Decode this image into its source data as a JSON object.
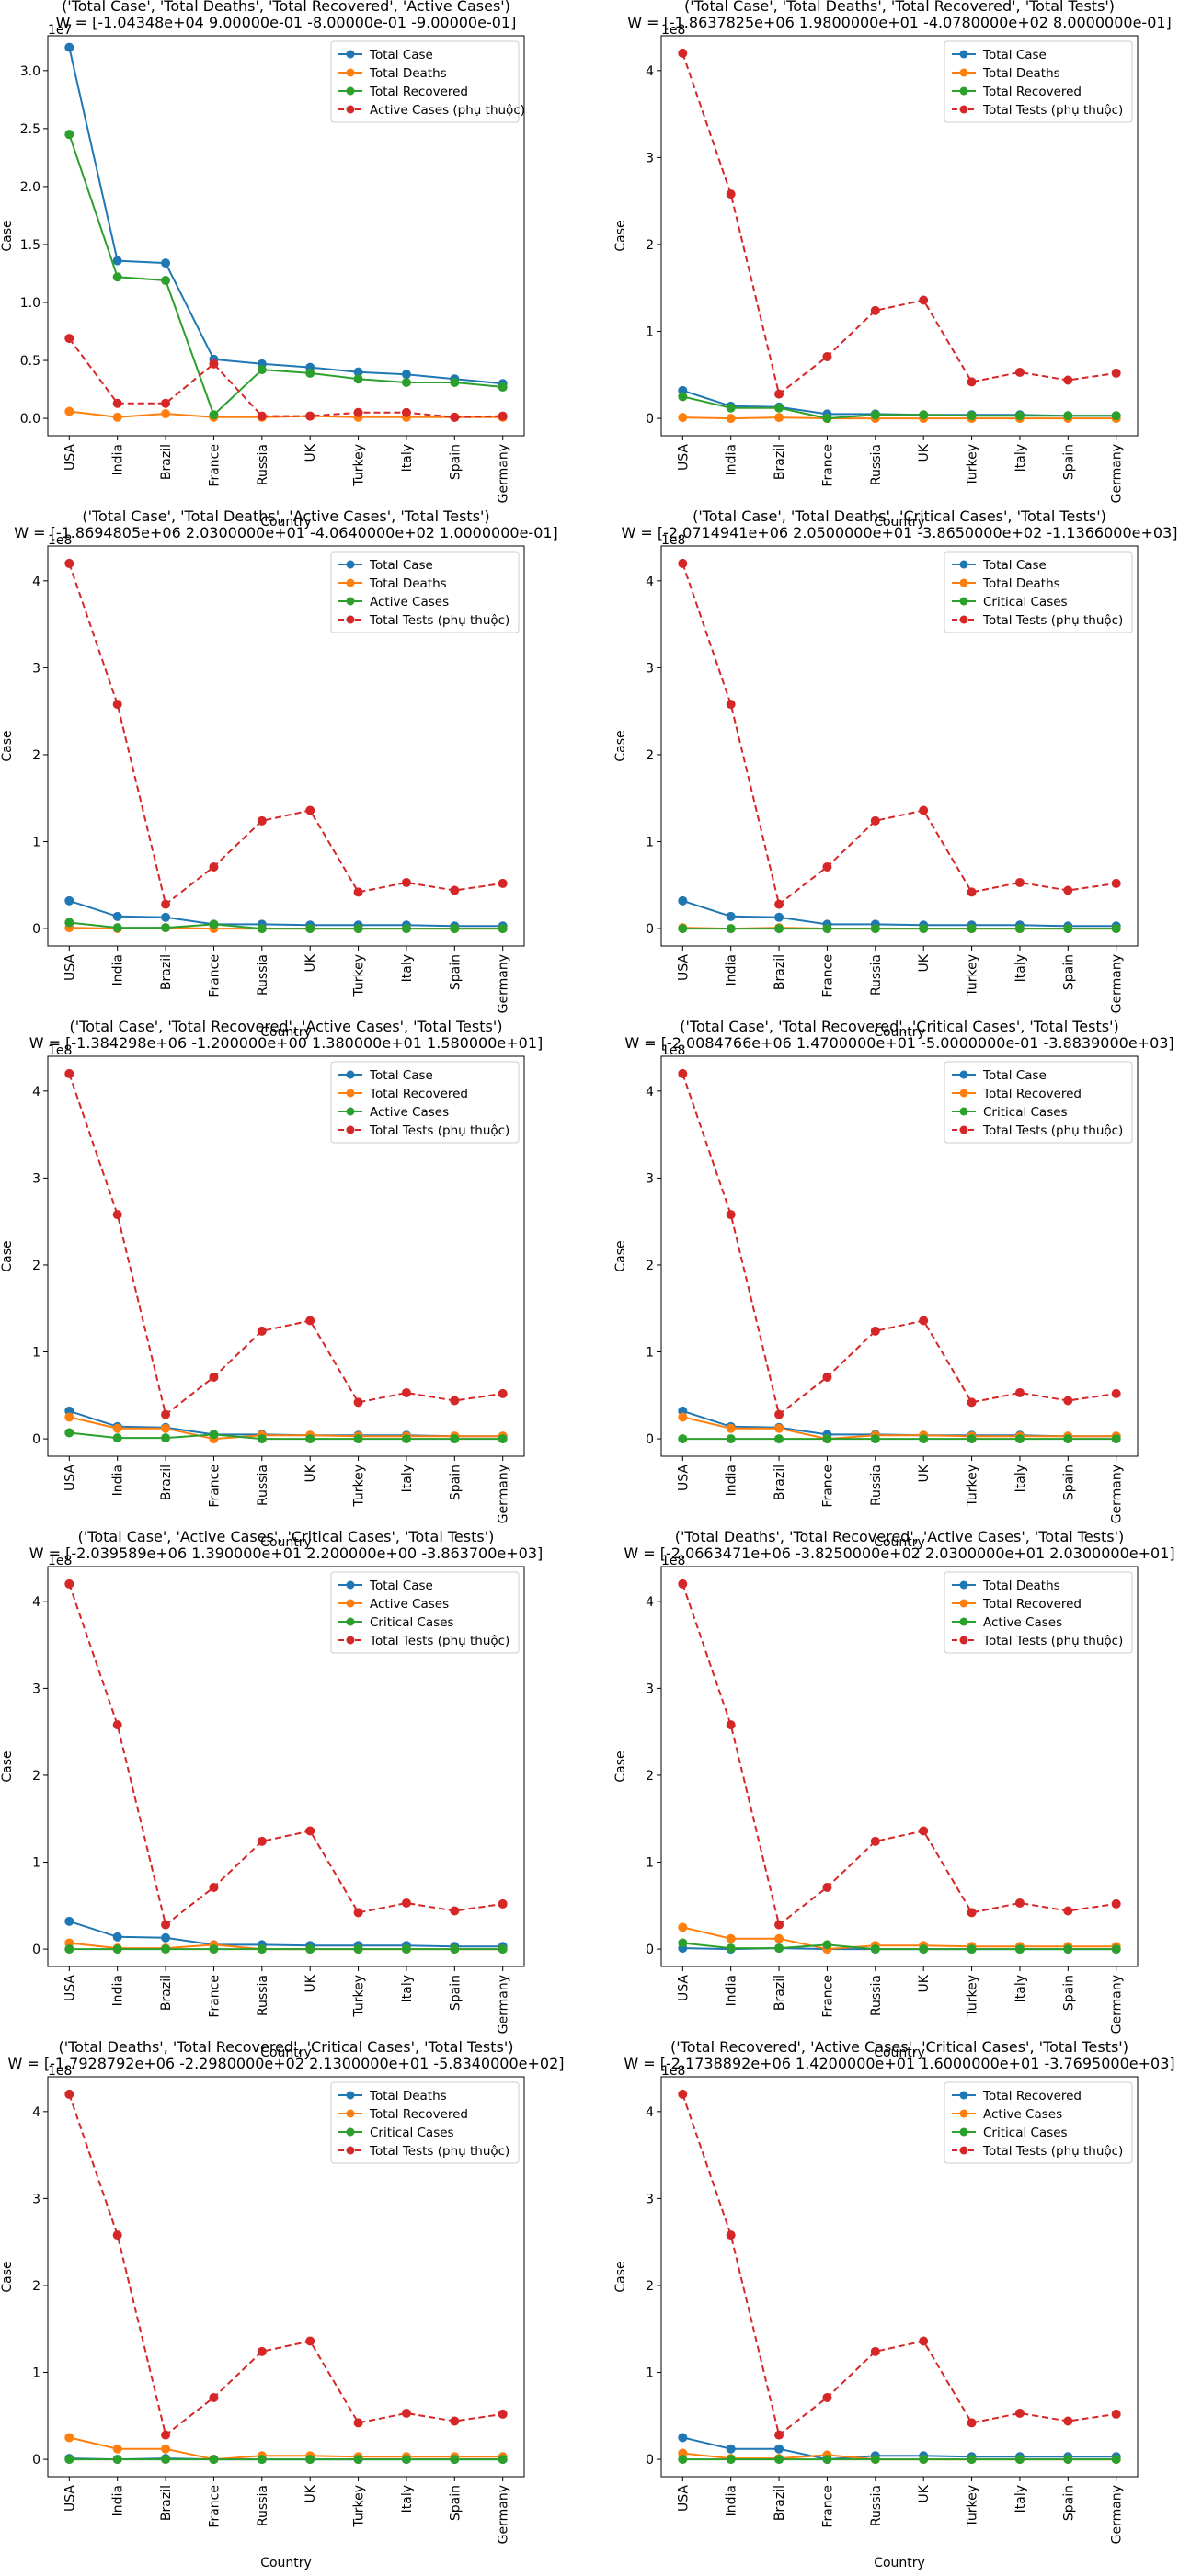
{
  "figure": {
    "layout": {
      "rows": 5,
      "cols": 2
    }
  },
  "common": {
    "xlabel": "Country",
    "ylabel": "Case",
    "offset_label": "1e8",
    "categories": [
      "USA",
      "India",
      "Brazil",
      "France",
      "Russia",
      "UK",
      "Turkey",
      "Italy",
      "Spain",
      "Germany"
    ],
    "colors": {
      "blue": "#1f77b4",
      "orange": "#ff7f0e",
      "green": "#2ca02c",
      "red": "#d62728"
    }
  },
  "chart_data": [
    {
      "type": "line",
      "title_line1": "('Total Case', 'Total Deaths', 'Total Recovered', 'Active Cases')",
      "title_line2": "W = [-1.04348e+04  9.00000e-01 -8.00000e-01 -9.00000e-01]",
      "xlabel": "Country",
      "ylabel": "Case",
      "offset_label": "1e7",
      "ylim": [
        -0.15,
        3.3
      ],
      "yticks": [
        "0.0",
        "0.5",
        "1.0",
        "1.5",
        "2.0",
        "2.5",
        "3.0"
      ],
      "legend_position": "top-right",
      "series": [
        {
          "name": "Total Case",
          "color": "#1f77b4",
          "dashed": false,
          "values": [
            3.2,
            1.36,
            1.34,
            0.51,
            0.47,
            0.44,
            0.4,
            0.38,
            0.34,
            0.3
          ]
        },
        {
          "name": "Total Deaths",
          "color": "#ff7f0e",
          "dashed": false,
          "values": [
            0.06,
            0.01,
            0.04,
            0.01,
            0.01,
            0.02,
            0.01,
            0.01,
            0.01,
            0.01
          ]
        },
        {
          "name": "Total Recovered",
          "color": "#2ca02c",
          "dashed": false,
          "values": [
            2.45,
            1.22,
            1.19,
            0.03,
            0.42,
            0.39,
            0.34,
            0.31,
            0.31,
            0.27
          ]
        },
        {
          "name": "Active Cases (phụ thuộc)",
          "color": "#d62728",
          "dashed": true,
          "values": [
            0.69,
            0.13,
            0.13,
            0.47,
            0.02,
            0.02,
            0.05,
            0.05,
            0.01,
            0.02
          ]
        }
      ]
    },
    {
      "type": "line",
      "title_line1": "('Total Case', 'Total Deaths', 'Total Recovered', 'Total Tests')",
      "title_line2": "W = [-1.8637825e+06  1.9800000e+01 -4.0780000e+02  8.0000000e-01]",
      "xlabel": "Country",
      "ylabel": "Case",
      "offset_label": "1e8",
      "ylim": [
        -0.2,
        4.4
      ],
      "yticks": [
        "0",
        "1",
        "2",
        "3",
        "4"
      ],
      "legend_position": "top-right",
      "series": [
        {
          "name": "Total Case",
          "color": "#1f77b4",
          "dashed": false,
          "values": [
            0.32,
            0.14,
            0.13,
            0.05,
            0.05,
            0.04,
            0.04,
            0.04,
            0.03,
            0.03
          ]
        },
        {
          "name": "Total Deaths",
          "color": "#ff7f0e",
          "dashed": false,
          "values": [
            0.01,
            0.0,
            0.01,
            0.0,
            0.0,
            0.0,
            0.0,
            0.0,
            0.0,
            0.0
          ]
        },
        {
          "name": "Total Recovered",
          "color": "#2ca02c",
          "dashed": false,
          "values": [
            0.25,
            0.12,
            0.12,
            0.0,
            0.04,
            0.04,
            0.03,
            0.03,
            0.03,
            0.03
          ]
        },
        {
          "name": "Total Tests (phụ thuộc)",
          "color": "#d62728",
          "dashed": true,
          "values": [
            4.2,
            2.58,
            0.28,
            0.71,
            1.24,
            1.36,
            0.42,
            0.53,
            0.44,
            0.52
          ]
        }
      ]
    },
    {
      "type": "line",
      "title_line1": "('Total Case', 'Total Deaths', 'Active Cases', 'Total Tests')",
      "title_line2": "W = [-1.8694805e+06  2.0300000e+01 -4.0640000e+02  1.0000000e-01]",
      "xlabel": "Country",
      "ylabel": "Case",
      "offset_label": "1e8",
      "ylim": [
        -0.2,
        4.4
      ],
      "yticks": [
        "0",
        "1",
        "2",
        "3",
        "4"
      ],
      "legend_position": "top-right",
      "series": [
        {
          "name": "Total Case",
          "color": "#1f77b4",
          "dashed": false,
          "values": [
            0.32,
            0.14,
            0.13,
            0.05,
            0.05,
            0.04,
            0.04,
            0.04,
            0.03,
            0.03
          ]
        },
        {
          "name": "Total Deaths",
          "color": "#ff7f0e",
          "dashed": false,
          "values": [
            0.01,
            0.0,
            0.01,
            0.0,
            0.0,
            0.0,
            0.0,
            0.0,
            0.0,
            0.0
          ]
        },
        {
          "name": "Active Cases",
          "color": "#2ca02c",
          "dashed": false,
          "values": [
            0.07,
            0.01,
            0.01,
            0.05,
            0.0,
            0.0,
            0.0,
            0.0,
            0.0,
            0.0
          ]
        },
        {
          "name": "Total Tests (phụ thuộc)",
          "color": "#d62728",
          "dashed": true,
          "values": [
            4.2,
            2.58,
            0.28,
            0.71,
            1.24,
            1.36,
            0.42,
            0.53,
            0.44,
            0.52
          ]
        }
      ]
    },
    {
      "type": "line",
      "title_line1": "('Total Case', 'Total Deaths', 'Critical Cases', 'Total Tests')",
      "title_line2": "W = [-2.0714941e+06  2.0500000e+01 -3.8650000e+02 -1.1366000e+03]",
      "xlabel": "Country",
      "ylabel": "Case",
      "offset_label": "1e8",
      "ylim": [
        -0.2,
        4.4
      ],
      "yticks": [
        "0",
        "1",
        "2",
        "3",
        "4"
      ],
      "legend_position": "top-right",
      "series": [
        {
          "name": "Total Case",
          "color": "#1f77b4",
          "dashed": false,
          "values": [
            0.32,
            0.14,
            0.13,
            0.05,
            0.05,
            0.04,
            0.04,
            0.04,
            0.03,
            0.03
          ]
        },
        {
          "name": "Total Deaths",
          "color": "#ff7f0e",
          "dashed": false,
          "values": [
            0.01,
            0.0,
            0.01,
            0.0,
            0.0,
            0.0,
            0.0,
            0.0,
            0.0,
            0.0
          ]
        },
        {
          "name": "Critical Cases",
          "color": "#2ca02c",
          "dashed": false,
          "values": [
            0.0,
            0.0,
            0.0,
            0.0,
            0.0,
            0.0,
            0.0,
            0.0,
            0.0,
            0.0
          ]
        },
        {
          "name": "Total Tests (phụ thuộc)",
          "color": "#d62728",
          "dashed": true,
          "values": [
            4.2,
            2.58,
            0.28,
            0.71,
            1.24,
            1.36,
            0.42,
            0.53,
            0.44,
            0.52
          ]
        }
      ]
    },
    {
      "type": "line",
      "title_line1": "('Total Case', 'Total Recovered', 'Active Cases', 'Total Tests')",
      "title_line2": "W = [-1.384298e+06 -1.200000e+00  1.380000e+01  1.580000e+01]",
      "xlabel": "Country",
      "ylabel": "Case",
      "offset_label": "1e8",
      "ylim": [
        -0.2,
        4.4
      ],
      "yticks": [
        "0",
        "1",
        "2",
        "3",
        "4"
      ],
      "legend_position": "top-right",
      "series": [
        {
          "name": "Total Case",
          "color": "#1f77b4",
          "dashed": false,
          "values": [
            0.32,
            0.14,
            0.13,
            0.05,
            0.05,
            0.04,
            0.04,
            0.04,
            0.03,
            0.03
          ]
        },
        {
          "name": "Total Recovered",
          "color": "#ff7f0e",
          "dashed": false,
          "values": [
            0.25,
            0.12,
            0.12,
            0.0,
            0.04,
            0.04,
            0.03,
            0.03,
            0.03,
            0.03
          ]
        },
        {
          "name": "Active Cases",
          "color": "#2ca02c",
          "dashed": false,
          "values": [
            0.07,
            0.01,
            0.01,
            0.05,
            0.0,
            0.0,
            0.0,
            0.0,
            0.0,
            0.0
          ]
        },
        {
          "name": "Total Tests (phụ thuộc)",
          "color": "#d62728",
          "dashed": true,
          "values": [
            4.2,
            2.58,
            0.28,
            0.71,
            1.24,
            1.36,
            0.42,
            0.53,
            0.44,
            0.52
          ]
        }
      ]
    },
    {
      "type": "line",
      "title_line1": "('Total Case', 'Total Recovered', 'Critical Cases', 'Total Tests')",
      "title_line2": "W = [-2.0084766e+06  1.4700000e+01 -5.0000000e-01 -3.8839000e+03]",
      "xlabel": "Country",
      "ylabel": "Case",
      "offset_label": "1e8",
      "ylim": [
        -0.2,
        4.4
      ],
      "yticks": [
        "0",
        "1",
        "2",
        "3",
        "4"
      ],
      "legend_position": "top-right",
      "series": [
        {
          "name": "Total Case",
          "color": "#1f77b4",
          "dashed": false,
          "values": [
            0.32,
            0.14,
            0.13,
            0.05,
            0.05,
            0.04,
            0.04,
            0.04,
            0.03,
            0.03
          ]
        },
        {
          "name": "Total Recovered",
          "color": "#ff7f0e",
          "dashed": false,
          "values": [
            0.25,
            0.12,
            0.12,
            0.0,
            0.04,
            0.04,
            0.03,
            0.03,
            0.03,
            0.03
          ]
        },
        {
          "name": "Critical Cases",
          "color": "#2ca02c",
          "dashed": false,
          "values": [
            0.0,
            0.0,
            0.0,
            0.0,
            0.0,
            0.0,
            0.0,
            0.0,
            0.0,
            0.0
          ]
        },
        {
          "name": "Total Tests (phụ thuộc)",
          "color": "#d62728",
          "dashed": true,
          "values": [
            4.2,
            2.58,
            0.28,
            0.71,
            1.24,
            1.36,
            0.42,
            0.53,
            0.44,
            0.52
          ]
        }
      ]
    },
    {
      "type": "line",
      "title_line1": "('Total Case', 'Active Cases', 'Critical Cases', 'Total Tests')",
      "title_line2": "W = [-2.039589e+06  1.390000e+01  2.200000e+00 -3.863700e+03]",
      "xlabel": "Country",
      "ylabel": "Case",
      "offset_label": "1e8",
      "ylim": [
        -0.2,
        4.4
      ],
      "yticks": [
        "0",
        "1",
        "2",
        "3",
        "4"
      ],
      "legend_position": "top-right",
      "series": [
        {
          "name": "Total Case",
          "color": "#1f77b4",
          "dashed": false,
          "values": [
            0.32,
            0.14,
            0.13,
            0.05,
            0.05,
            0.04,
            0.04,
            0.04,
            0.03,
            0.03
          ]
        },
        {
          "name": "Active Cases",
          "color": "#ff7f0e",
          "dashed": false,
          "values": [
            0.07,
            0.01,
            0.01,
            0.05,
            0.0,
            0.0,
            0.0,
            0.0,
            0.0,
            0.0
          ]
        },
        {
          "name": "Critical Cases",
          "color": "#2ca02c",
          "dashed": false,
          "values": [
            0.0,
            0.0,
            0.0,
            0.0,
            0.0,
            0.0,
            0.0,
            0.0,
            0.0,
            0.0
          ]
        },
        {
          "name": "Total Tests (phụ thuộc)",
          "color": "#d62728",
          "dashed": true,
          "values": [
            4.2,
            2.58,
            0.28,
            0.71,
            1.24,
            1.36,
            0.42,
            0.53,
            0.44,
            0.52
          ]
        }
      ]
    },
    {
      "type": "line",
      "title_line1": "('Total Deaths', 'Total Recovered', 'Active Cases', 'Total Tests')",
      "title_line2": "W = [-2.0663471e+06 -3.8250000e+02  2.0300000e+01  2.0300000e+01]",
      "xlabel": "Country",
      "ylabel": "Case",
      "offset_label": "1e8",
      "ylim": [
        -0.2,
        4.4
      ],
      "yticks": [
        "0",
        "1",
        "2",
        "3",
        "4"
      ],
      "legend_position": "top-right",
      "series": [
        {
          "name": "Total Deaths",
          "color": "#1f77b4",
          "dashed": false,
          "values": [
            0.01,
            0.0,
            0.01,
            0.0,
            0.0,
            0.0,
            0.0,
            0.0,
            0.0,
            0.0
          ]
        },
        {
          "name": "Total Recovered",
          "color": "#ff7f0e",
          "dashed": false,
          "values": [
            0.25,
            0.12,
            0.12,
            0.0,
            0.04,
            0.04,
            0.03,
            0.03,
            0.03,
            0.03
          ]
        },
        {
          "name": "Active Cases",
          "color": "#2ca02c",
          "dashed": false,
          "values": [
            0.07,
            0.01,
            0.01,
            0.05,
            0.0,
            0.0,
            0.0,
            0.0,
            0.0,
            0.0
          ]
        },
        {
          "name": "Total Tests (phụ thuộc)",
          "color": "#d62728",
          "dashed": true,
          "values": [
            4.2,
            2.58,
            0.28,
            0.71,
            1.24,
            1.36,
            0.42,
            0.53,
            0.44,
            0.52
          ]
        }
      ]
    },
    {
      "type": "line",
      "title_line1": "('Total Deaths', 'Total Recovered', 'Critical Cases', 'Total Tests')",
      "title_line2": "W = [-1.7928792e+06 -2.2980000e+02  2.1300000e+01 -5.8340000e+02]",
      "xlabel": "Country",
      "ylabel": "Case",
      "offset_label": "1e8",
      "ylim": [
        -0.2,
        4.4
      ],
      "yticks": [
        "0",
        "1",
        "2",
        "3",
        "4"
      ],
      "legend_position": "top-right",
      "series": [
        {
          "name": "Total Deaths",
          "color": "#1f77b4",
          "dashed": false,
          "values": [
            0.01,
            0.0,
            0.01,
            0.0,
            0.0,
            0.0,
            0.0,
            0.0,
            0.0,
            0.0
          ]
        },
        {
          "name": "Total Recovered",
          "color": "#ff7f0e",
          "dashed": false,
          "values": [
            0.25,
            0.12,
            0.12,
            0.0,
            0.04,
            0.04,
            0.03,
            0.03,
            0.03,
            0.03
          ]
        },
        {
          "name": "Critical Cases",
          "color": "#2ca02c",
          "dashed": false,
          "values": [
            0.0,
            0.0,
            0.0,
            0.0,
            0.0,
            0.0,
            0.0,
            0.0,
            0.0,
            0.0
          ]
        },
        {
          "name": "Total Tests (phụ thuộc)",
          "color": "#d62728",
          "dashed": true,
          "values": [
            4.2,
            2.58,
            0.28,
            0.71,
            1.24,
            1.36,
            0.42,
            0.53,
            0.44,
            0.52
          ]
        }
      ]
    },
    {
      "type": "line",
      "title_line1": "('Total Recovered', 'Active Cases', 'Critical Cases', 'Total Tests')",
      "title_line2": "W = [-2.1738892e+06  1.4200000e+01  1.6000000e+01 -3.7695000e+03]",
      "xlabel": "Country",
      "ylabel": "Case",
      "offset_label": "1e8",
      "ylim": [
        -0.2,
        4.4
      ],
      "yticks": [
        "0",
        "1",
        "2",
        "3",
        "4"
      ],
      "legend_position": "top-right",
      "series": [
        {
          "name": "Total Recovered",
          "color": "#1f77b4",
          "dashed": false,
          "values": [
            0.25,
            0.12,
            0.12,
            0.0,
            0.04,
            0.04,
            0.03,
            0.03,
            0.03,
            0.03
          ]
        },
        {
          "name": "Active Cases",
          "color": "#ff7f0e",
          "dashed": false,
          "values": [
            0.07,
            0.01,
            0.01,
            0.05,
            0.0,
            0.0,
            0.0,
            0.0,
            0.0,
            0.0
          ]
        },
        {
          "name": "Critical Cases",
          "color": "#2ca02c",
          "dashed": false,
          "values": [
            0.0,
            0.0,
            0.0,
            0.0,
            0.0,
            0.0,
            0.0,
            0.0,
            0.0,
            0.0
          ]
        },
        {
          "name": "Total Tests (phụ thuộc)",
          "color": "#d62728",
          "dashed": true,
          "values": [
            4.2,
            2.58,
            0.28,
            0.71,
            1.24,
            1.36,
            0.42,
            0.53,
            0.44,
            0.52
          ]
        }
      ]
    }
  ]
}
